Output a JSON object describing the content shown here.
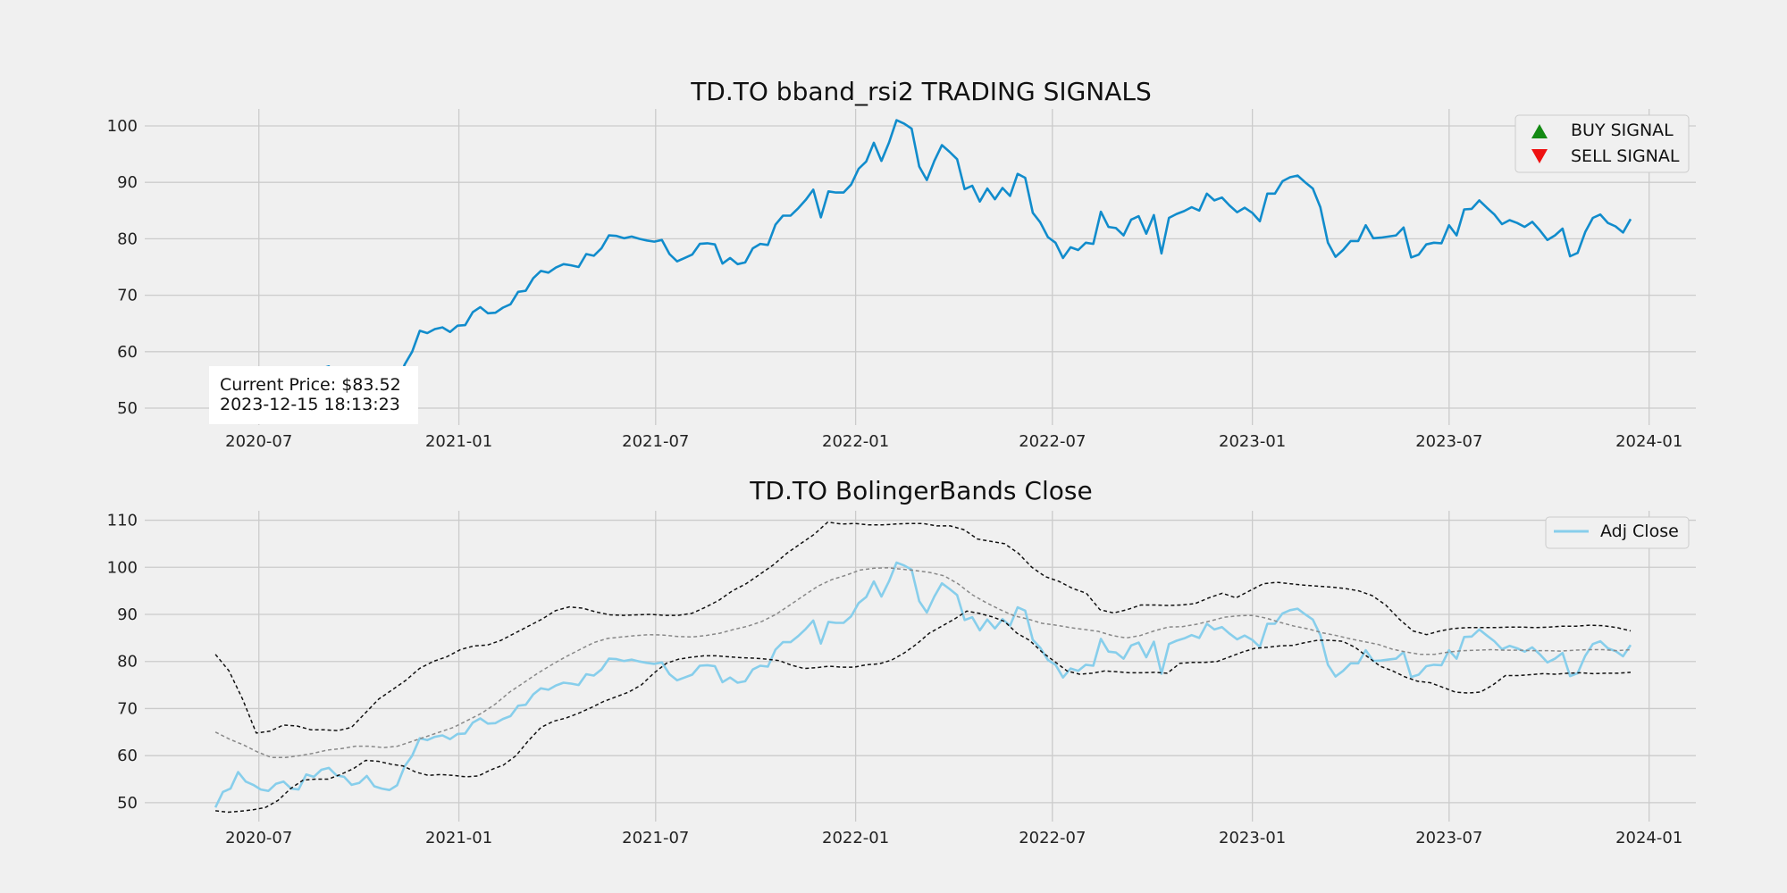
{
  "chart_data": [
    {
      "type": "line",
      "title": "TD.TO bband_rsi2 TRADING SIGNALS",
      "xlabel": "",
      "ylabel": "",
      "x_ticks": [
        "2020-07",
        "2021-01",
        "2021-07",
        "2022-01",
        "2022-07",
        "2023-01",
        "2023-07",
        "2024-01"
      ],
      "y_ticks": [
        50,
        60,
        70,
        80,
        90,
        100
      ],
      "xlim": [
        "2020-03-18",
        "2024-02-13"
      ],
      "ylim": [
        47,
        103
      ],
      "grid": true,
      "legend_position": "top-right",
      "legend": [
        {
          "label": "BUY SIGNAL",
          "marker": "triangle-up",
          "color": "#138a13"
        },
        {
          "label": "SELL SIGNAL",
          "marker": "triangle-down",
          "color": "#ee1111"
        }
      ],
      "annotation": {
        "line1": "Current Price: $83.52",
        "line2": "2023-12-15 18:13:23"
      },
      "series": [
        {
          "color": "#118ccc",
          "start": "2020-05-22",
          "end": "2023-12-15",
          "values": [
            49,
            52.3,
            53,
            56.5,
            54.5,
            53.8,
            52.8,
            52.5,
            54,
            54.5,
            53,
            52.8,
            56,
            55.5,
            57,
            57.4,
            55.8,
            55.5,
            53.8,
            54.2,
            55.7,
            53.5,
            53,
            52.7,
            53.7,
            57.7,
            60,
            63.7,
            63.3,
            64,
            64.3,
            63.5,
            64.6,
            64.7,
            67,
            67.9,
            66.8,
            66.9,
            67.8,
            68.4,
            70.6,
            70.8,
            73,
            74.3,
            74,
            74.9,
            75.5,
            75.3,
            75,
            77.3,
            77,
            78.3,
            80.6,
            80.5,
            80.1,
            80.4,
            80,
            79.7,
            79.5,
            79.8,
            77.3,
            76,
            76.6,
            77.2,
            79.1,
            79.2,
            79,
            75.6,
            76.6,
            75.5,
            75.8,
            78.3,
            79.1,
            78.9,
            82.5,
            84.1,
            84.1,
            85.4,
            86.9,
            88.7,
            83.8,
            88.4,
            88.2,
            88.2,
            89.6,
            92.4,
            93.7,
            97,
            93.8,
            97,
            101,
            100.4,
            99.5,
            92.8,
            90.4,
            93.8,
            96.6,
            95.4,
            94.1,
            88.8,
            89.4,
            86.6,
            88.9,
            87,
            89,
            87.6,
            91.5,
            90.8,
            84.6,
            82.9,
            80.3,
            79.3,
            76.6,
            78.5,
            78,
            79.3,
            79.1,
            84.8,
            82.1,
            81.9,
            80.6,
            83.4,
            84,
            80.9,
            84.2,
            77.4,
            83.7,
            84.4,
            84.9,
            85.6,
            85,
            88,
            86.8,
            87.3,
            85.9,
            84.7,
            85.5,
            84.6,
            83.1,
            88,
            88,
            90.2,
            90.9,
            91.2,
            90,
            88.9,
            85.6,
            79.3,
            76.8,
            78,
            79.6,
            79.6,
            82.4,
            80.1,
            80.2,
            80.4,
            80.6,
            82,
            76.7,
            77.2,
            79,
            79.3,
            79.2,
            82.4,
            80.6,
            85.2,
            85.3,
            86.8,
            85.5,
            84.3,
            82.6,
            83.3,
            82.8,
            82.1,
            83,
            81.5,
            79.8,
            80.6,
            81.8,
            76.9,
            77.5,
            81.2,
            83.7,
            84.3,
            82.8,
            82.2,
            81.1,
            83.5
          ]
        }
      ]
    },
    {
      "type": "line",
      "title": "TD.TO BolingerBands Close",
      "xlabel": "",
      "ylabel": "",
      "x_ticks": [
        "2020-07",
        "2021-01",
        "2021-07",
        "2022-01",
        "2022-07",
        "2023-01",
        "2023-07",
        "2024-01"
      ],
      "y_ticks": [
        50,
        60,
        70,
        80,
        90,
        100,
        110
      ],
      "xlim": [
        "2020-03-18",
        "2024-02-13"
      ],
      "ylim": [
        46,
        112
      ],
      "grid": true,
      "legend_position": "top-right",
      "legend": [
        {
          "label": "Adj Close",
          "color": "#87ceeb"
        }
      ],
      "series": [
        {
          "name": "Adj Close",
          "color": "#87ceeb",
          "style": "solid",
          "start": "2020-05-22",
          "end": "2023-12-15",
          "values": [
            49,
            52.3,
            53,
            56.5,
            54.5,
            53.8,
            52.8,
            52.5,
            54,
            54.5,
            53,
            52.8,
            56,
            55.5,
            57,
            57.4,
            55.8,
            55.5,
            53.8,
            54.2,
            55.7,
            53.5,
            53,
            52.7,
            53.7,
            57.7,
            60,
            63.7,
            63.3,
            64,
            64.3,
            63.5,
            64.6,
            64.7,
            67,
            67.9,
            66.8,
            66.9,
            67.8,
            68.4,
            70.6,
            70.8,
            73,
            74.3,
            74,
            74.9,
            75.5,
            75.3,
            75,
            77.3,
            77,
            78.3,
            80.6,
            80.5,
            80.1,
            80.4,
            80,
            79.7,
            79.5,
            79.8,
            77.3,
            76,
            76.6,
            77.2,
            79.1,
            79.2,
            79,
            75.6,
            76.6,
            75.5,
            75.8,
            78.3,
            79.1,
            78.9,
            82.5,
            84.1,
            84.1,
            85.4,
            86.9,
            88.7,
            83.8,
            88.4,
            88.2,
            88.2,
            89.6,
            92.4,
            93.7,
            97,
            93.8,
            97,
            101,
            100.4,
            99.5,
            92.8,
            90.4,
            93.8,
            96.6,
            95.4,
            94.1,
            88.8,
            89.4,
            86.6,
            88.9,
            87,
            89,
            87.6,
            91.5,
            90.8,
            84.6,
            82.9,
            80.3,
            79.3,
            76.6,
            78.5,
            78,
            79.3,
            79.1,
            84.8,
            82.1,
            81.9,
            80.6,
            83.4,
            84,
            80.9,
            84.2,
            77.4,
            83.7,
            84.4,
            84.9,
            85.6,
            85,
            88,
            86.8,
            87.3,
            85.9,
            84.7,
            85.5,
            84.6,
            83.1,
            88,
            88,
            90.2,
            90.9,
            91.2,
            90,
            88.9,
            85.6,
            79.3,
            76.8,
            78,
            79.6,
            79.6,
            82.4,
            80.1,
            80.2,
            80.4,
            80.6,
            82,
            76.7,
            77.2,
            79,
            79.3,
            79.2,
            82.4,
            80.6,
            85.2,
            85.3,
            86.8,
            85.5,
            84.3,
            82.6,
            83.3,
            82.8,
            82.1,
            83,
            81.5,
            79.8,
            80.6,
            81.8,
            76.9,
            77.5,
            81.2,
            83.7,
            84.3,
            82.8,
            82.2,
            81.1,
            83.5
          ]
        },
        {
          "color": "#111111",
          "style": "dashed",
          "start": "2020-05-22",
          "end": "2023-12-15",
          "values": [
            81.5,
            78,
            72,
            64.8,
            65.2,
            66.5,
            66.3,
            65.5,
            65.5,
            65.3,
            66,
            69,
            72,
            74,
            76,
            78.5,
            80,
            81,
            82.5,
            83.3,
            83.5,
            84.5,
            86,
            87.5,
            89,
            90.8,
            91.6,
            91.3,
            90.5,
            89.9,
            89.8,
            89.9,
            90,
            89.8,
            89.8,
            90.2,
            91.5,
            93,
            95,
            96.5,
            98.5,
            100.5,
            103,
            105,
            107,
            109.6,
            109.2,
            109.3,
            109,
            109,
            109.2,
            109.3,
            109.3,
            108.8,
            108.8,
            108,
            106,
            105.5,
            105,
            103,
            100,
            98,
            97,
            95.5,
            94.5,
            91,
            90.3,
            91,
            92,
            92,
            91.9,
            92,
            92.3,
            93.5,
            94.5,
            93.5,
            95,
            96.5,
            96.8,
            96.5,
            96.2,
            96,
            95.8,
            95.5,
            95,
            94,
            92,
            89,
            86.5,
            85.7,
            86.5,
            87,
            87.2,
            87.2,
            87.2,
            87.3,
            87.3,
            87.2,
            87.3,
            87.5,
            87.5,
            87.7,
            87.6,
            87.2,
            86.5
          ]
        },
        {
          "color": "#888888",
          "style": "dashed",
          "start": "2020-05-22",
          "end": "2023-12-15",
          "values": [
            65,
            63.5,
            62.3,
            60.8,
            59.6,
            59.6,
            60,
            60.5,
            61.2,
            61.5,
            62,
            62,
            61.7,
            62,
            63,
            64,
            65,
            66,
            67.5,
            69,
            71,
            73.5,
            75.5,
            77.5,
            79.3,
            81,
            82.5,
            84,
            84.9,
            85.2,
            85.5,
            85.7,
            85.6,
            85.3,
            85.2,
            85.5,
            86,
            86.8,
            87.5,
            88.5,
            90,
            92,
            94,
            96,
            97.4,
            98.3,
            99.4,
            99.8,
            99.9,
            99.6,
            99.3,
            98.9,
            98.2,
            96.5,
            94.2,
            92.5,
            91,
            89.7,
            89,
            88.1,
            87.7,
            87.2,
            86.8,
            86.4,
            85.5,
            85,
            85.5,
            86.5,
            87.3,
            87.4,
            87.9,
            88.6,
            89.4,
            89.7,
            89.8,
            89.2,
            88.3,
            87.5,
            86.9,
            86.1,
            85.5,
            84.8,
            84.2,
            83.6,
            82.6,
            82,
            81.5,
            81.5,
            82,
            82.3,
            82.4,
            82.5,
            82.4,
            82.4,
            82.3,
            82.3,
            82.2,
            82.4,
            82.5,
            82.5,
            82.3,
            82.5
          ]
        },
        {
          "color": "#111111",
          "style": "dashed",
          "start": "2020-05-22",
          "end": "2023-12-15",
          "values": [
            48.3,
            48,
            48.2,
            48.5,
            49,
            50.5,
            53,
            54.8,
            55,
            55,
            56,
            57.2,
            59,
            58.8,
            58.2,
            57.8,
            56.5,
            55.8,
            56,
            55.8,
            55.5,
            55.7,
            57,
            58,
            60,
            63.2,
            66,
            67.3,
            68,
            69,
            70.2,
            71.5,
            72.5,
            73.5,
            75,
            77.5,
            79.6,
            80.5,
            80.9,
            81.2,
            81.2,
            81,
            80.8,
            80.7,
            80.5,
            80.2,
            79.2,
            78.5,
            78.7,
            79,
            78.8,
            78.8,
            79.3,
            79.5,
            80.3,
            81.8,
            83.7,
            86,
            87.5,
            89,
            90.7,
            90.2,
            89.5,
            88.5,
            86,
            84.5,
            82,
            80,
            78,
            77.3,
            77.5,
            78,
            77.8,
            77.6,
            77.6,
            77.7,
            77.5,
            79.6,
            79.8,
            79.8,
            80,
            81,
            82,
            82.8,
            83,
            83.3,
            83.4,
            84,
            84.5,
            84.5,
            84.3,
            83,
            81,
            79,
            78,
            76.7,
            75.8,
            75.5,
            74.5,
            73.5,
            73.3,
            73.5,
            75,
            77,
            77,
            77.2,
            77.4,
            77.3,
            77.5,
            77.6,
            77.4,
            77.5,
            77.5,
            77.7
          ]
        }
      ]
    }
  ]
}
